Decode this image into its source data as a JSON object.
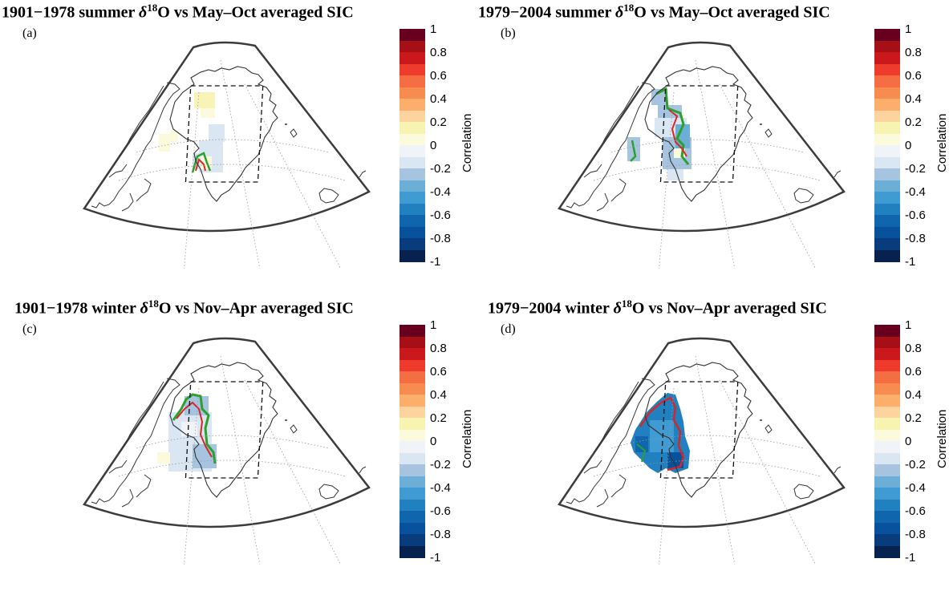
{
  "panels": [
    {
      "title_pre": "1901−1978 summer ",
      "delta": "δ",
      "sup": "18",
      "title_post": "O  vs May–Oct averaged SIC",
      "label": "(a)"
    },
    {
      "title_pre": "1979−2004 summer ",
      "delta": "δ",
      "sup": "18",
      "title_post": "O  vs May–Oct averaged SIC",
      "label": "(b)"
    },
    {
      "title_pre": "1901−1978  winter ",
      "delta": "δ",
      "sup": "18",
      "title_post": "O vs Nov–Apr averaged SIC",
      "label": "(c)"
    },
    {
      "title_pre": "1979−2004 winter ",
      "delta": "δ",
      "sup": "18",
      "title_post": "O vs Nov–Apr averaged SIC",
      "label": "(d)"
    }
  ],
  "colorbar": {
    "label": "Correlation",
    "ticks": [
      "1",
      "0.8",
      "0.6",
      "0.4",
      "0.2",
      "0",
      "-0.2",
      "-0.4",
      "-0.6",
      "-0.8",
      "-1"
    ],
    "colors": [
      "#67001f",
      "#a50f15",
      "#cb181d",
      "#ef3b2c",
      "#f46d43",
      "#f88b50",
      "#fdae6b",
      "#fdd49e",
      "#f7f3b0",
      "#fbfadc",
      "#f0f4f8",
      "#dae6f2",
      "#a6c4e0",
      "#6baed6",
      "#3f9bd1",
      "#2180c0",
      "#0f66ad",
      "#08519c",
      "#083c7d",
      "#08224f"
    ]
  },
  "colors": {
    "outline": "#3c3c3c",
    "contour_green": "#2ca02c",
    "contour_red": "#d62728"
  }
}
